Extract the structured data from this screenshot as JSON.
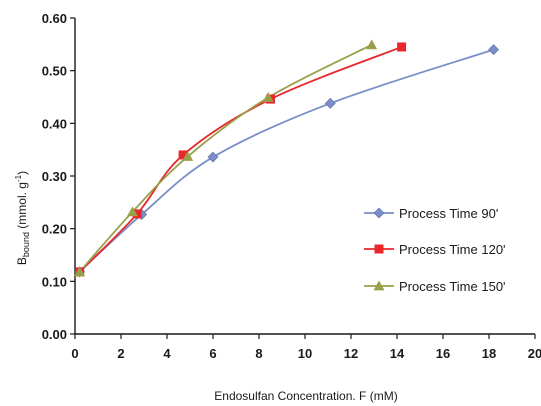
{
  "chart_data": {
    "type": "line",
    "xlabel": "Endosulfan Concentration. F (mM)",
    "ylabel_main": "B",
    "ylabel_sub": "bound",
    "ylabel_rest": " (mmol. g",
    "ylabel_sup": "-1",
    "ylabel_end": ")",
    "xlim": [
      0,
      20
    ],
    "ylim": [
      0.0,
      0.6
    ],
    "xticks": [
      0,
      2,
      4,
      6,
      8,
      10,
      12,
      14,
      16,
      18,
      20
    ],
    "yticks": [
      "0.00",
      "0.10",
      "0.20",
      "0.30",
      "0.40",
      "0.50",
      "0.60"
    ],
    "grid": false,
    "legend_position": "right",
    "series": [
      {
        "name": "Process Time 90'",
        "color": "#7a8ec8",
        "marker": "diamond",
        "x": [
          0.2,
          2.9,
          6.0,
          11.1,
          18.2
        ],
        "y": [
          0.118,
          0.227,
          0.336,
          0.438,
          0.54
        ]
      },
      {
        "name": "Process Time 120'",
        "color": "#e8262b",
        "marker": "square",
        "x": [
          0.2,
          2.7,
          4.7,
          8.5,
          14.2
        ],
        "y": [
          0.118,
          0.228,
          0.34,
          0.446,
          0.545
        ]
      },
      {
        "name": "Process Time 150'",
        "color": "#9aa04a",
        "marker": "triangle",
        "x": [
          0.2,
          2.5,
          4.9,
          8.4,
          12.9
        ],
        "y": [
          0.118,
          0.232,
          0.337,
          0.449,
          0.549
        ]
      }
    ]
  }
}
